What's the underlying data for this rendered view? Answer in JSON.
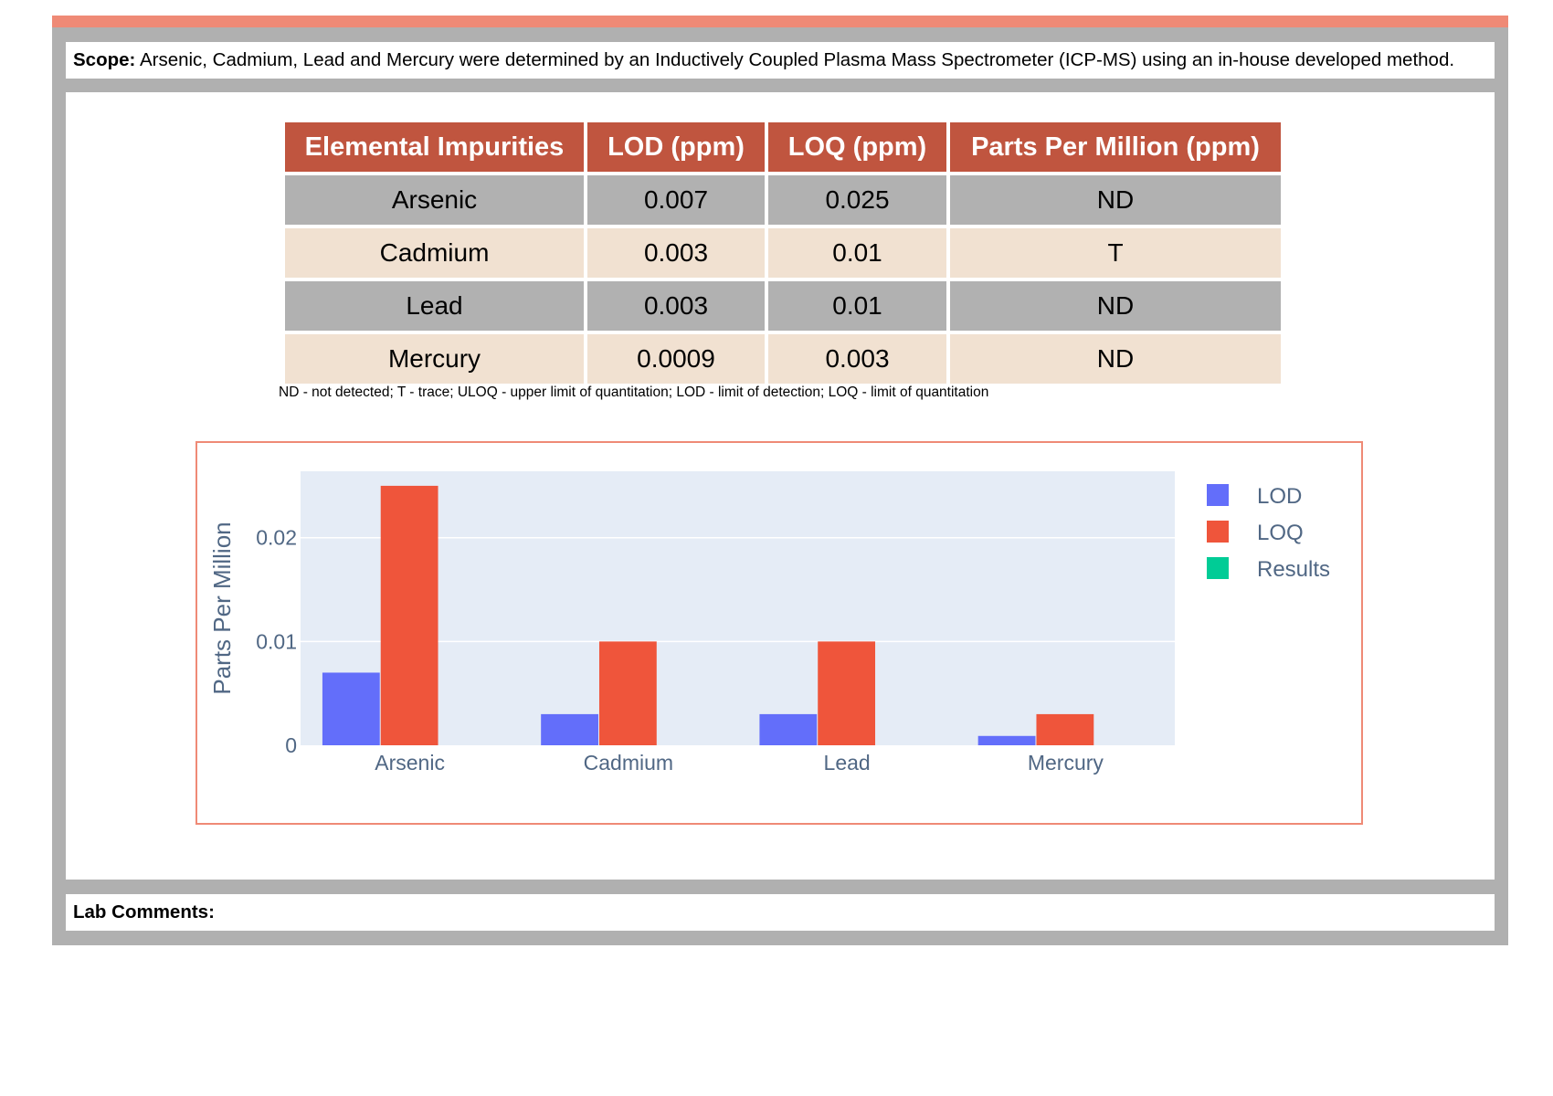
{
  "scope": {
    "label": "Scope:",
    "text": "Arsenic, Cadmium, Lead and Mercury were determined by an Inductively Coupled Plasma Mass Spectrometer (ICP-MS) using an in-house developed method."
  },
  "table": {
    "headers": [
      "Elemental Impurities",
      "LOD (ppm)",
      "LOQ (ppm)",
      "Parts Per Million (ppm)"
    ],
    "rows": [
      [
        "Arsenic",
        "0.007",
        "0.025",
        "ND"
      ],
      [
        "Cadmium",
        "0.003",
        "0.01",
        "T"
      ],
      [
        "Lead",
        "0.003",
        "0.01",
        "ND"
      ],
      [
        "Mercury",
        "0.0009",
        "0.003",
        "ND"
      ]
    ],
    "header_color": "#c0553f",
    "row_colors": [
      "#b1b1b1",
      "#f1e1d1"
    ]
  },
  "footnote": "ND - not detected; T - trace; ULOQ - upper limit of quantitation; LOD - limit of detection; LOQ - limit of quantitation",
  "chart_data": {
    "type": "bar",
    "categories": [
      "Arsenic",
      "Cadmium",
      "Lead",
      "Mercury"
    ],
    "series": [
      {
        "name": "LOD",
        "values": [
          0.007,
          0.003,
          0.003,
          0.0009
        ],
        "color": "#636efa"
      },
      {
        "name": "LOQ",
        "values": [
          0.025,
          0.01,
          0.01,
          0.003
        ],
        "color": "#ef553b"
      },
      {
        "name": "Results",
        "values": [
          0,
          0,
          0,
          0
        ],
        "color": "#00cc96"
      }
    ],
    "title": "",
    "xlabel": "",
    "ylabel": "Parts Per Million",
    "ylim": [
      0,
      0.0264
    ],
    "yticks": [
      0,
      0.01,
      0.02
    ],
    "ytick_labels": [
      "0",
      "0.01",
      "0.02"
    ],
    "grid": true,
    "plot_background": "#e5ecf6",
    "legend_position": "top-right"
  },
  "comments": {
    "label": "Lab Comments:"
  }
}
